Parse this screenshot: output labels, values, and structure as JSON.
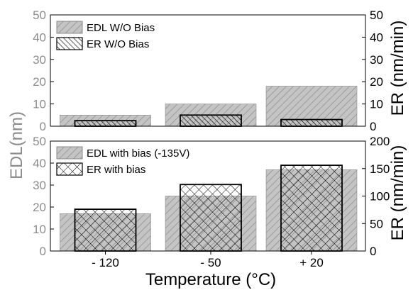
{
  "chart_data": [
    {
      "type": "bar",
      "panel": "top",
      "categories": [
        "- 120",
        "- 50",
        "+ 20"
      ],
      "series": [
        {
          "name": "EDL W/O Bias",
          "axis": "left",
          "values": [
            5,
            10,
            18
          ]
        },
        {
          "name": "ER W/O Bias",
          "axis": "right",
          "values": [
            2.5,
            5,
            3
          ]
        }
      ],
      "ylim_left": [
        0,
        50
      ],
      "ylim_right": [
        0,
        50
      ],
      "yticks_left": [
        "0",
        "10",
        "20",
        "30",
        "40",
        "50"
      ],
      "yticks_right": [
        "0",
        "10",
        "20",
        "30",
        "40",
        "50"
      ],
      "legend": [
        "EDL W/O Bias",
        "ER W/O Bias"
      ],
      "legend_position": "top-left"
    },
    {
      "type": "bar",
      "panel": "bottom",
      "categories": [
        "- 120",
        "- 50",
        "+ 20"
      ],
      "series": [
        {
          "name": "EDL with bias (-135V)",
          "axis": "left",
          "values": [
            17,
            25,
            37
          ]
        },
        {
          "name": "ER with bias",
          "axis": "right",
          "values": [
            76,
            121,
            156
          ]
        }
      ],
      "ylim_left": [
        0,
        50
      ],
      "ylim_right": [
        0,
        200
      ],
      "yticks_left": [
        "0",
        "10",
        "20",
        "30",
        "40",
        "50"
      ],
      "yticks_right": [
        "0",
        "50",
        "100",
        "150",
        "200"
      ],
      "legend": [
        "EDL with bias (-135V)",
        "ER with bias"
      ],
      "legend_position": "top-left"
    }
  ],
  "axes": {
    "ylabel_left": "EDL(nm)",
    "ylabel_right_top": "ER (nm/min)",
    "ylabel_right_bottom": "ER (nm/min)",
    "xlabel": "Temperature (°C)",
    "xticks": [
      "- 120",
      "- 50",
      "+ 20"
    ]
  },
  "colors": {
    "edl_fill": "#c4c4c4",
    "edl_hatch": "#8a8a8a",
    "er_hatch": "#000000",
    "left_axis_text": "#8c8c8c",
    "right_axis_text": "#000000"
  }
}
